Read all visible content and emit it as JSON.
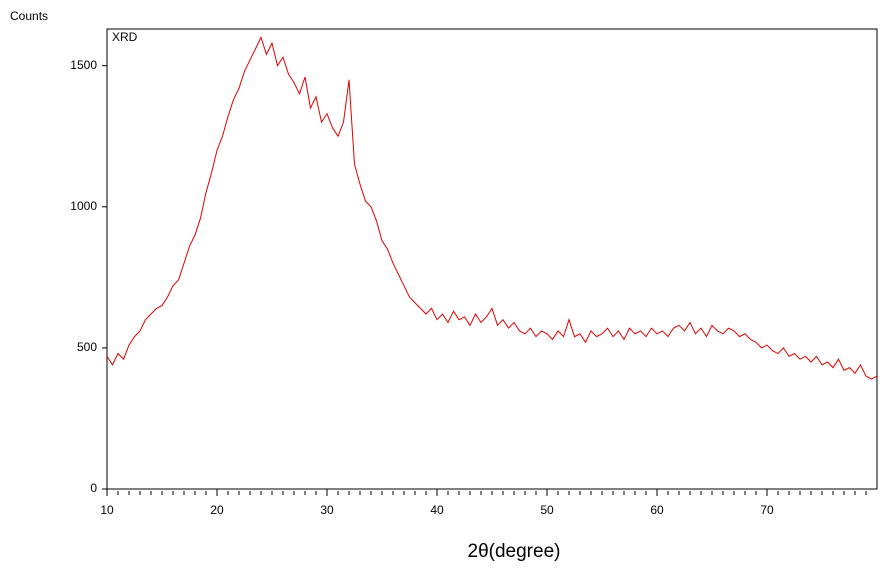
{
  "chart_data": {
    "type": "line",
    "y_axis_label": "Counts",
    "annotation": "XRD",
    "x_axis_label": "2θ(degree)",
    "xlim": [
      10,
      80
    ],
    "ylim": [
      0,
      1630
    ],
    "xticks": [
      10,
      20,
      30,
      40,
      50,
      60,
      70
    ],
    "xminor_ticks": [
      11,
      12,
      13,
      14,
      15,
      16,
      17,
      18,
      19,
      21,
      22,
      23,
      24,
      25,
      26,
      27,
      28,
      29,
      31,
      32,
      33,
      34,
      35,
      36,
      37,
      38,
      39,
      41,
      42,
      43,
      44,
      45,
      46,
      47,
      48,
      49,
      51,
      52,
      53,
      54,
      55,
      56,
      57,
      58,
      59,
      61,
      62,
      63,
      64,
      65,
      66,
      67,
      68,
      69,
      71,
      72,
      73,
      74,
      75,
      76,
      77,
      78,
      79
    ],
    "yticks": [
      0,
      500,
      1000,
      1500
    ],
    "x": [
      10,
      10.5,
      11,
      11.5,
      12,
      12.5,
      13,
      13.5,
      14,
      14.5,
      15,
      15.5,
      16,
      16.5,
      17,
      17.5,
      18,
      18.5,
      19,
      19.5,
      20,
      20.5,
      21,
      21.5,
      22,
      22.5,
      23,
      23.5,
      24,
      24.5,
      25,
      25.5,
      26,
      26.5,
      27,
      27.5,
      28,
      28.5,
      29,
      29.5,
      30,
      30.5,
      31,
      31.5,
      32,
      32.5,
      33,
      33.5,
      34,
      34.5,
      35,
      35.5,
      36,
      36.5,
      37,
      37.5,
      38,
      38.5,
      39,
      39.5,
      40,
      40.5,
      41,
      41.5,
      42,
      42.5,
      43,
      43.5,
      44,
      44.5,
      45,
      45.5,
      46,
      46.5,
      47,
      47.5,
      48,
      48.5,
      49,
      49.5,
      50,
      50.5,
      51,
      51.5,
      52,
      52.5,
      53,
      53.5,
      54,
      54.5,
      55,
      55.5,
      56,
      56.5,
      57,
      57.5,
      58,
      58.5,
      59,
      59.5,
      60,
      60.5,
      61,
      61.5,
      62,
      62.5,
      63,
      63.5,
      64,
      64.5,
      65,
      65.5,
      66,
      66.5,
      67,
      67.5,
      68,
      68.5,
      69,
      69.5,
      70,
      70.5,
      71,
      71.5,
      72,
      72.5,
      73,
      73.5,
      74,
      74.5,
      75,
      75.5,
      76,
      76.5,
      77,
      77.5,
      78,
      78.5,
      79,
      79.5,
      80
    ],
    "series": [
      {
        "name": "XRD",
        "color": "#e00000",
        "values": [
          470,
          440,
          480,
          460,
          510,
          540,
          560,
          600,
          620,
          640,
          650,
          680,
          720,
          740,
          800,
          860,
          900,
          960,
          1050,
          1120,
          1200,
          1250,
          1320,
          1380,
          1420,
          1480,
          1520,
          1560,
          1600,
          1540,
          1580,
          1500,
          1530,
          1470,
          1440,
          1400,
          1460,
          1350,
          1390,
          1300,
          1330,
          1280,
          1250,
          1300,
          1450,
          1150,
          1080,
          1020,
          1000,
          950,
          880,
          850,
          800,
          760,
          720,
          680,
          660,
          640,
          620,
          640,
          600,
          620,
          590,
          630,
          600,
          610,
          580,
          620,
          590,
          610,
          640,
          580,
          600,
          570,
          590,
          560,
          550,
          570,
          540,
          560,
          550,
          530,
          560,
          540,
          600,
          540,
          550,
          520,
          560,
          540,
          550,
          570,
          540,
          560,
          530,
          570,
          550,
          560,
          540,
          570,
          550,
          560,
          540,
          570,
          580,
          560,
          590,
          550,
          570,
          540,
          580,
          560,
          550,
          570,
          560,
          540,
          550,
          530,
          520,
          500,
          510,
          490,
          480,
          500,
          470,
          480,
          460,
          470,
          450,
          470,
          440,
          450,
          430,
          460,
          420,
          430,
          410,
          440,
          400,
          390,
          400
        ]
      }
    ]
  }
}
